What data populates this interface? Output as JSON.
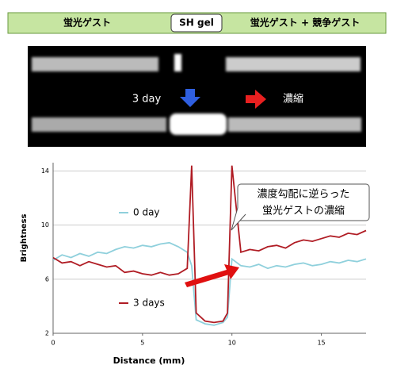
{
  "header": {
    "left": "蛍光ゲスト",
    "center": "SH gel",
    "right": "蛍光ゲスト + 競争ゲスト"
  },
  "gel_image": {
    "label_left": "3 day",
    "label_right": "濃縮"
  },
  "chart_data": {
    "type": "line",
    "x_label": "Distance (mm)",
    "y_label": "Brightness",
    "annotations": [
      "濃度勾配に逆らった",
      "蛍光ゲストの濃縮"
    ],
    "x": [
      0,
      0.5,
      1,
      1.5,
      2,
      2.5,
      3,
      3.5,
      4,
      4.5,
      5,
      5.5,
      6,
      6.5,
      7,
      7.5,
      7.75,
      8,
      8.5,
      9,
      9.5,
      9.75,
      10,
      10.5,
      11,
      11.5,
      12,
      12.5,
      13,
      13.5,
      14,
      14.5,
      15,
      15.5,
      16,
      16.5,
      17,
      17.5
    ],
    "series": [
      {
        "name": "0 day",
        "color": "#8fd0dc",
        "values": [
          7.4,
          7.8,
          7.6,
          7.9,
          7.7,
          8.0,
          7.9,
          8.2,
          8.4,
          8.3,
          8.5,
          8.4,
          8.6,
          8.7,
          8.4,
          8.0,
          7.0,
          3.0,
          2.7,
          2.6,
          2.8,
          3.2,
          7.5,
          7.0,
          6.9,
          7.1,
          6.8,
          7.0,
          6.9,
          7.1,
          7.2,
          7.0,
          7.1,
          7.3,
          7.2,
          7.4,
          7.3,
          7.5
        ]
      },
      {
        "name": "3 days",
        "color": "#b01c24",
        "values": [
          7.6,
          7.2,
          7.3,
          7.0,
          7.3,
          7.1,
          6.9,
          7.0,
          6.5,
          6.6,
          6.4,
          6.3,
          6.5,
          6.3,
          6.4,
          6.8,
          14.4,
          3.5,
          2.9,
          2.8,
          2.9,
          3.5,
          14.4,
          8.0,
          8.2,
          8.1,
          8.4,
          8.5,
          8.3,
          8.7,
          8.9,
          8.8,
          9.0,
          9.2,
          9.1,
          9.4,
          9.3,
          9.6
        ]
      }
    ],
    "xlim": [
      0,
      17.5
    ],
    "xticks": [
      0,
      5,
      10,
      15
    ],
    "ylim": [
      2,
      14.5
    ],
    "yticks": [
      2,
      6,
      10,
      14
    ],
    "grid": true
  }
}
